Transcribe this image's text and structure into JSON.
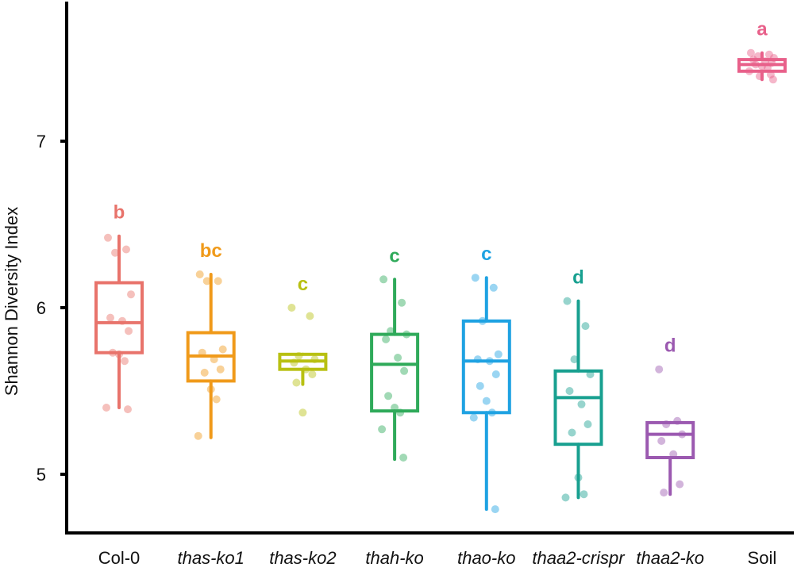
{
  "chart_data": {
    "type": "box",
    "ylabel": "Shannon Diversity Index",
    "xlabel": "",
    "ylim": [
      4.65,
      7.85
    ],
    "yticks": [
      5,
      6,
      7
    ],
    "grid": false,
    "legend": "none",
    "groups": [
      {
        "name": "Col-0",
        "italic": false,
        "color": "#E8736B",
        "letter": "b",
        "q1": 5.73,
        "median": 5.91,
        "q3": 6.15,
        "whisker_low": 5.4,
        "whisker_high": 6.43,
        "points": [
          6.42,
          6.35,
          6.33,
          6.08,
          5.94,
          5.92,
          5.86,
          5.73,
          5.72,
          5.68,
          5.4,
          5.39
        ]
      },
      {
        "name": "thas-ko1",
        "italic": true,
        "color": "#F09A1A",
        "letter": "bc",
        "q1": 5.56,
        "median": 5.71,
        "q3": 5.85,
        "whisker_low": 5.22,
        "whisker_high": 6.2,
        "points": [
          6.2,
          6.16,
          6.16,
          5.75,
          5.73,
          5.69,
          5.63,
          5.61,
          5.51,
          5.45,
          5.23
        ]
      },
      {
        "name": "thas-ko2",
        "italic": true,
        "color": "#B8C012",
        "letter": "c",
        "q1": 5.63,
        "median": 5.68,
        "q3": 5.72,
        "whisker_low": 5.54,
        "whisker_high": 5.72,
        "points": [
          6.0,
          5.95,
          5.71,
          5.69,
          5.67,
          5.63,
          5.6,
          5.55,
          5.37
        ]
      },
      {
        "name": "thah-ko",
        "italic": true,
        "color": "#2FAA5A",
        "letter": "c",
        "q1": 5.38,
        "median": 5.66,
        "q3": 5.84,
        "whisker_low": 5.09,
        "whisker_high": 6.17,
        "points": [
          6.17,
          6.03,
          5.86,
          5.84,
          5.81,
          5.7,
          5.62,
          5.47,
          5.4,
          5.37,
          5.27,
          5.1
        ]
      },
      {
        "name": "thao-ko",
        "italic": true,
        "color": "#1EA2E2",
        "letter": "c",
        "q1": 5.37,
        "median": 5.68,
        "q3": 5.92,
        "whisker_low": 4.79,
        "whisker_high": 6.18,
        "points": [
          6.18,
          6.12,
          5.92,
          5.72,
          5.69,
          5.68,
          5.6,
          5.53,
          5.44,
          5.37,
          5.34,
          4.79
        ]
      },
      {
        "name": "thaa2-crispr",
        "italic": true,
        "color": "#18A090",
        "letter": "d",
        "q1": 5.18,
        "median": 5.46,
        "q3": 5.62,
        "whisker_low": 4.86,
        "whisker_high": 6.04,
        "points": [
          6.04,
          5.89,
          5.69,
          5.6,
          5.5,
          5.42,
          5.3,
          5.25,
          4.98,
          4.88,
          4.86
        ]
      },
      {
        "name": "thaa2-ko",
        "italic": true,
        "color": "#9B59B0",
        "letter": "d",
        "q1": 5.1,
        "median": 5.24,
        "q3": 5.31,
        "whisker_low": 4.88,
        "whisker_high": 5.31,
        "points": [
          5.63,
          5.32,
          5.3,
          5.24,
          5.2,
          5.12,
          4.94,
          4.89
        ]
      },
      {
        "name": "Soil",
        "italic": false,
        "color": "#E8608A",
        "letter": "a",
        "q1": 7.42,
        "median": 7.46,
        "q3": 7.49,
        "whisker_low": 7.37,
        "whisker_high": 7.53,
        "points": [
          7.53,
          7.52,
          7.51,
          7.5,
          7.49,
          7.48,
          7.47,
          7.46,
          7.45,
          7.44,
          7.42,
          7.4,
          7.39,
          7.37
        ]
      }
    ]
  }
}
